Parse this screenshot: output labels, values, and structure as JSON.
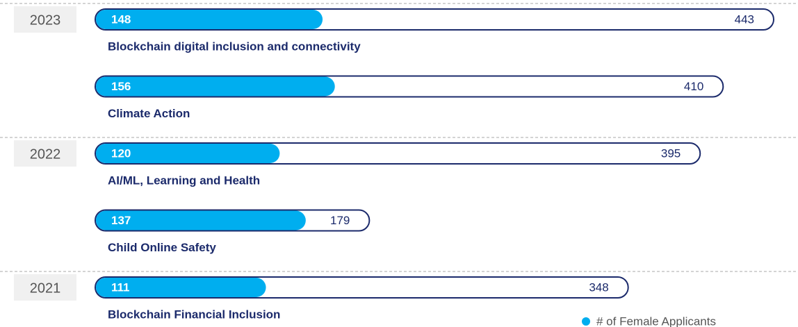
{
  "chart_data": {
    "type": "bar",
    "orientation": "horizontal",
    "categories": [
      "Blockchain digital inclusion and connectivity",
      "Climate Action",
      "AI/ML, Learning and Health",
      "Child Online Safety",
      "Blockchain Financial Inclusion"
    ],
    "years": [
      "2023",
      null,
      "2022",
      null,
      "2021"
    ],
    "totals": [
      443,
      410,
      395,
      179,
      348
    ],
    "total_color": "#1b2a6b",
    "series": [
      {
        "name": "# of Female Applicants",
        "color": "#00aeef",
        "values": [
          148,
          156,
          120,
          137,
          111
        ]
      }
    ],
    "legend": "bottom-right"
  }
}
